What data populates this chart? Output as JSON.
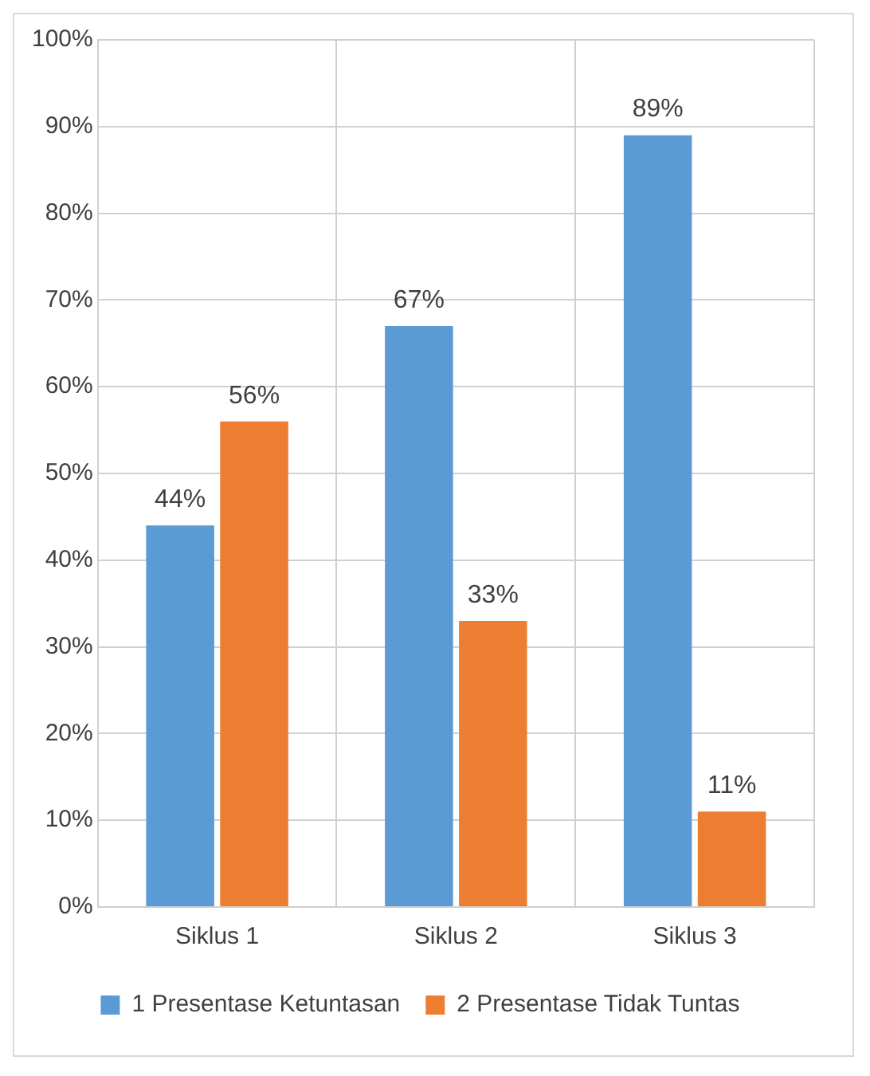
{
  "chart_data": {
    "type": "bar",
    "categories": [
      "Siklus 1",
      "Siklus 2",
      "Siklus 3"
    ],
    "series": [
      {
        "name": "1 Presentase Ketuntasan",
        "color": "#5b9bd5",
        "values": [
          44,
          67,
          89
        ],
        "value_labels": [
          "44%",
          "67%",
          "89%"
        ]
      },
      {
        "name": "2 Presentase Tidak Tuntas",
        "color": "#ed7d31",
        "values": [
          56,
          33,
          11
        ],
        "value_labels": [
          "56%",
          "33%",
          "11%"
        ]
      }
    ],
    "ylim": [
      0,
      100
    ],
    "yticks": [
      {
        "value": 0,
        "label": "0%"
      },
      {
        "value": 10,
        "label": "10%"
      },
      {
        "value": 20,
        "label": "20%"
      },
      {
        "value": 30,
        "label": "30%"
      },
      {
        "value": 40,
        "label": "40%"
      },
      {
        "value": 50,
        "label": "50%"
      },
      {
        "value": 60,
        "label": "60%"
      },
      {
        "value": 70,
        "label": "70%"
      },
      {
        "value": 80,
        "label": "80%"
      },
      {
        "value": 90,
        "label": "90%"
      },
      {
        "value": 100,
        "label": "100%"
      }
    ],
    "grid": true,
    "legend": "bottom"
  }
}
